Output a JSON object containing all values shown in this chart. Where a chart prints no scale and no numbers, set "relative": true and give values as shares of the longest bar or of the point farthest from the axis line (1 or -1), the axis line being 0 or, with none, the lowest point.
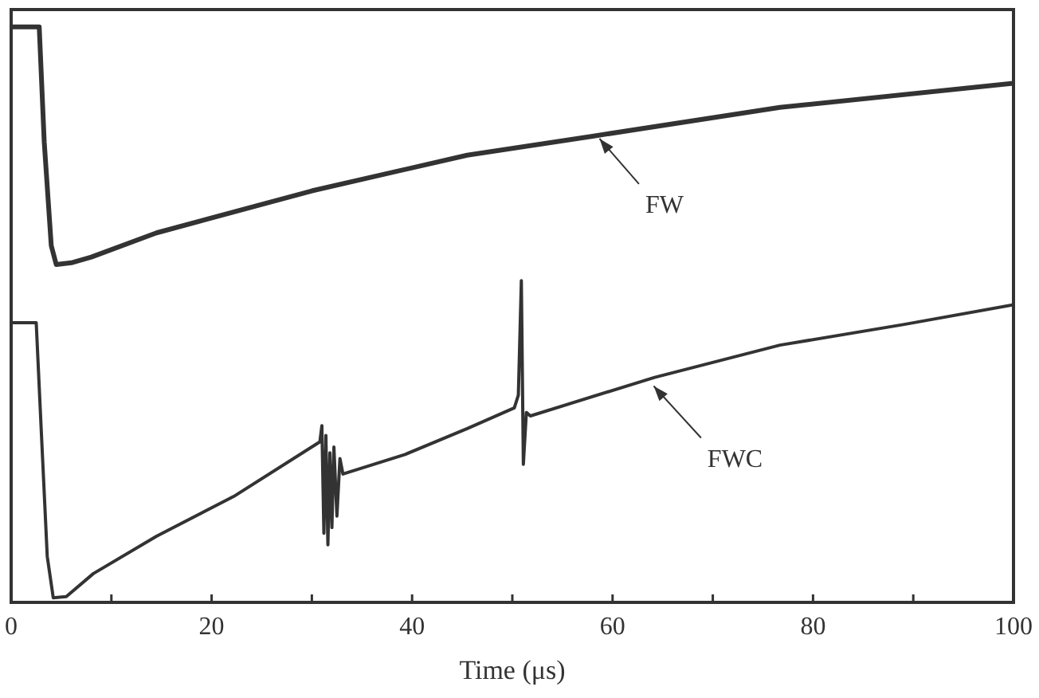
{
  "chart_data": {
    "type": "line",
    "relative": true,
    "xlabel": "Time (μs)",
    "xlim": [
      0,
      100
    ],
    "xticks": [
      0,
      {
        "value": 10,
        "label": null
      },
      20,
      {
        "value": 30,
        "label": null
      },
      40,
      {
        "value": 50,
        "label": null
      },
      60,
      {
        "value": 70,
        "label": null
      },
      80,
      {
        "value": 90,
        "label": null
      },
      100
    ],
    "grid": false,
    "marker": "none",
    "line_style": "solid",
    "annotations": [
      {
        "text": "FW",
        "x": 58.5,
        "y": 0.81
      },
      {
        "text": "FWC",
        "x": 63.9,
        "y": 0.38
      }
    ],
    "series": [
      {
        "color": "#333333",
        "x": [
          0,
          2.8,
          3.3,
          4.0,
          4.5,
          6.0,
          8.0,
          14.5,
          30,
          45.5,
          58,
          76.7,
          100
        ],
        "values": [
          1.0,
          1.0,
          0.8,
          0.62,
          0.587,
          0.59,
          0.6,
          0.642,
          0.715,
          0.777,
          0.81,
          0.86,
          0.902
        ]
      },
      {
        "color": "#333333",
        "x": [
          0,
          2.5,
          3.0,
          3.6,
          4.2,
          5.5,
          8.2,
          14.5,
          22.2,
          30.8,
          31.0,
          31.2,
          31.4,
          31.6,
          31.8,
          32.0,
          32.2,
          32.5,
          32.8,
          33.1,
          39.3,
          45.5,
          50.2,
          50.6,
          50.9,
          51.1,
          51.4,
          51.8,
          64.2,
          76.7,
          89.1,
          100
        ],
        "values": [
          0.486,
          0.486,
          0.3,
          0.08,
          0.008,
          0.01,
          0.05,
          0.115,
          0.184,
          0.279,
          0.307,
          0.12,
          0.29,
          0.1,
          0.26,
          0.13,
          0.27,
          0.15,
          0.25,
          0.223,
          0.257,
          0.302,
          0.338,
          0.36,
          0.559,
          0.24,
          0.33,
          0.324,
          0.391,
          0.447,
          0.483,
          0.517
        ]
      }
    ]
  }
}
